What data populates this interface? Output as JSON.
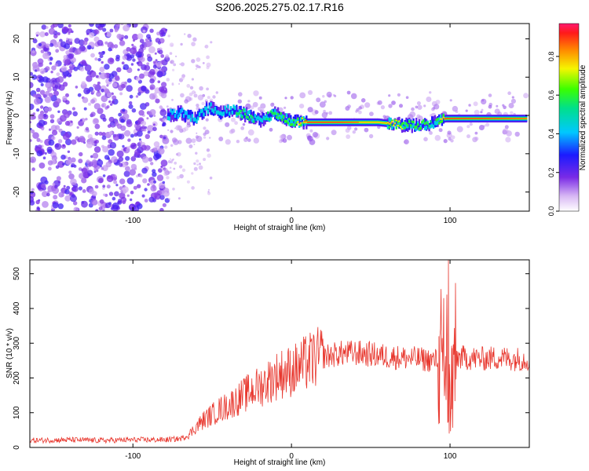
{
  "title": "S206.2025.275.02.17.R16",
  "chart_data": [
    {
      "type": "heatmap",
      "xlabel": "Height of straight line (km)",
      "ylabel": "Frequency (Hz)",
      "xlim": [
        -165,
        150
      ],
      "ylim": [
        -25,
        24
      ],
      "xticks": [
        -100,
        0,
        100
      ],
      "yticks": [
        -20,
        -10,
        0,
        10,
        20
      ],
      "colorbar": {
        "label": "Normalized spectral amplitude",
        "range": [
          0,
          0.97
        ],
        "ticks": [
          0.0,
          0.2,
          0.4,
          0.6,
          0.8
        ]
      },
      "trace_ridge": [
        {
          "x": -78,
          "freq": 0.2,
          "amp": 0.45
        },
        {
          "x": -70,
          "freq": 0.6,
          "amp": 0.4
        },
        {
          "x": -60,
          "freq": -0.8,
          "amp": 0.45
        },
        {
          "x": -52,
          "freq": 2.2,
          "amp": 0.5
        },
        {
          "x": -45,
          "freq": 0.5,
          "amp": 0.45
        },
        {
          "x": -38,
          "freq": 1.6,
          "amp": 0.55
        },
        {
          "x": -30,
          "freq": 0.4,
          "amp": 0.6
        },
        {
          "x": -20,
          "freq": -1.2,
          "amp": 0.55
        },
        {
          "x": -10,
          "freq": 0.5,
          "amp": 0.6
        },
        {
          "x": 0,
          "freq": -1.5,
          "amp": 0.65
        },
        {
          "x": 10,
          "freq": -1.8,
          "amp": 0.95
        },
        {
          "x": 30,
          "freq": -1.8,
          "amp": 0.95
        },
        {
          "x": 55,
          "freq": -1.8,
          "amp": 0.85
        },
        {
          "x": 70,
          "freq": -2.5,
          "amp": 0.75
        },
        {
          "x": 80,
          "freq": -2.6,
          "amp": 0.65
        },
        {
          "x": 90,
          "freq": -2.0,
          "amp": 0.55
        },
        {
          "x": 97,
          "freq": -0.8,
          "amp": 0.95
        },
        {
          "x": 120,
          "freq": -0.8,
          "amp": 0.95
        },
        {
          "x": 148,
          "freq": -0.8,
          "amp": 0.9
        }
      ]
    },
    {
      "type": "line",
      "xlabel": "Height of straight line (km)",
      "ylabel": "SNR (10 * v/v)",
      "xlim": [
        -165,
        150
      ],
      "ylim": [
        0,
        540
      ],
      "xticks": [
        -100,
        0,
        100
      ],
      "yticks": [
        0,
        100,
        200,
        300,
        400,
        500
      ],
      "color": "#e8382f",
      "series": [
        {
          "name": "SNR",
          "x": [
            -165,
            -140,
            -120,
            -100,
            -80,
            -70,
            -65,
            -60,
            -55,
            -50,
            -45,
            -40,
            -35,
            -30,
            -25,
            -20,
            -15,
            -10,
            -5,
            0,
            5,
            10,
            15,
            20,
            25,
            30,
            40,
            50,
            60,
            70,
            80,
            85,
            90,
            94,
            96,
            98,
            100,
            102,
            104,
            110,
            120,
            130,
            140,
            150
          ],
          "y": [
            20,
            22,
            20,
            22,
            22,
            25,
            35,
            60,
            80,
            95,
            110,
            120,
            135,
            150,
            165,
            175,
            190,
            205,
            215,
            220,
            230,
            245,
            255,
            262,
            265,
            270,
            272,
            268,
            262,
            258,
            255,
            252,
            250,
            255,
            290,
            200,
            150,
            230,
            260,
            258,
            255,
            258,
            255,
            255
          ]
        }
      ],
      "spikes": [
        {
          "x": 93,
          "y": 320
        },
        {
          "x": 96,
          "y": 430
        },
        {
          "x": 98,
          "y": 440
        },
        {
          "x": 99,
          "y": 540
        },
        {
          "x": 99.5,
          "y": 40
        },
        {
          "x": 101,
          "y": 110
        }
      ]
    }
  ]
}
